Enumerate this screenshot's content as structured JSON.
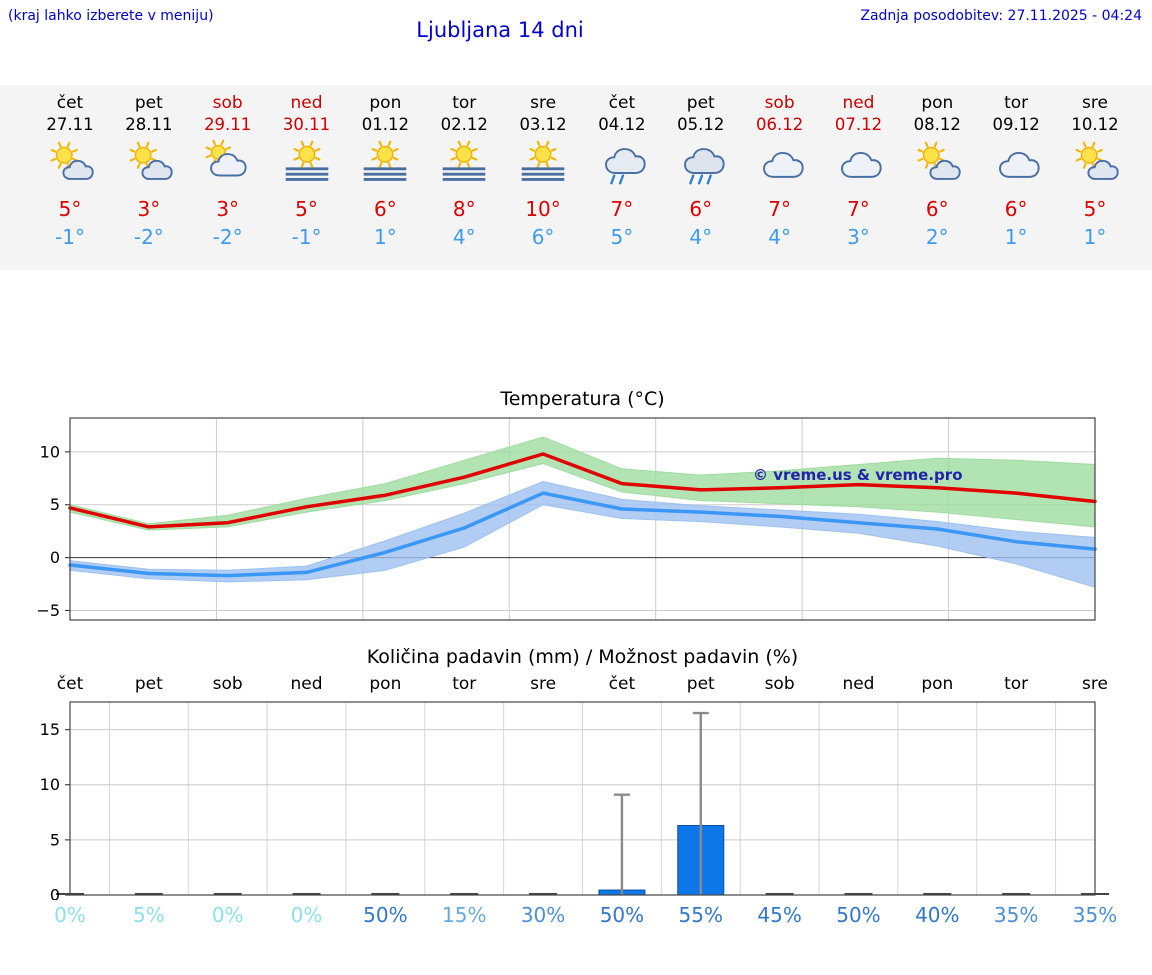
{
  "header": {
    "hint": "(kraj lahko izberete v meniju)",
    "title": "Ljubljana 14 dni",
    "updated": "Zadnja posodobitev: 27.11.2025 - 04:24"
  },
  "colors": {
    "accent_blue": "#0000cc",
    "max_temp_red": "#dd0000",
    "min_temp_blue": "#3d9bf0",
    "weekend_red": "#cc0000",
    "strip_background": "#f4f4f4"
  },
  "forecast": {
    "days": [
      {
        "name": "čet",
        "date": "27.11",
        "weekend": false,
        "icon": "partly-sunny",
        "tmax": "5°",
        "tmin": "-1°"
      },
      {
        "name": "pet",
        "date": "28.11",
        "weekend": false,
        "icon": "partly-sunny",
        "tmax": "3°",
        "tmin": "-2°"
      },
      {
        "name": "sob",
        "date": "29.11",
        "weekend": true,
        "icon": "cloud-sun",
        "tmax": "3°",
        "tmin": "-2°"
      },
      {
        "name": "ned",
        "date": "30.11",
        "weekend": true,
        "icon": "fog-sun",
        "tmax": "5°",
        "tmin": "-1°"
      },
      {
        "name": "pon",
        "date": "01.12",
        "weekend": false,
        "icon": "fog-sun",
        "tmax": "6°",
        "tmin": "1°"
      },
      {
        "name": "tor",
        "date": "02.12",
        "weekend": false,
        "icon": "fog-sun",
        "tmax": "8°",
        "tmin": "4°"
      },
      {
        "name": "sre",
        "date": "03.12",
        "weekend": false,
        "icon": "fog-sun",
        "tmax": "10°",
        "tmin": "6°"
      },
      {
        "name": "čet",
        "date": "04.12",
        "weekend": false,
        "icon": "rain",
        "tmax": "7°",
        "tmin": "5°"
      },
      {
        "name": "pet",
        "date": "05.12",
        "weekend": false,
        "icon": "rain-heavy",
        "tmax": "6°",
        "tmin": "4°"
      },
      {
        "name": "sob",
        "date": "06.12",
        "weekend": true,
        "icon": "cloudy",
        "tmax": "7°",
        "tmin": "4°"
      },
      {
        "name": "ned",
        "date": "07.12",
        "weekend": true,
        "icon": "cloudy",
        "tmax": "7°",
        "tmin": "3°"
      },
      {
        "name": "pon",
        "date": "08.12",
        "weekend": false,
        "icon": "partly-sunny",
        "tmax": "6°",
        "tmin": "2°"
      },
      {
        "name": "tor",
        "date": "09.12",
        "weekend": false,
        "icon": "cloudy",
        "tmax": "6°",
        "tmin": "1°"
      },
      {
        "name": "sre",
        "date": "10.12",
        "weekend": false,
        "icon": "partly-sunny",
        "tmax": "5°",
        "tmin": "1°"
      }
    ]
  },
  "chart_data": [
    {
      "type": "line",
      "title": "Temperatura (°C)",
      "categories": [
        "čet",
        "pet",
        "sob",
        "ned",
        "pon",
        "tor",
        "sre",
        "čet",
        "pet",
        "sob",
        "ned",
        "pon",
        "tor",
        "sre"
      ],
      "ylim": [
        -5.9,
        13.2
      ],
      "yticks": [
        -5,
        0,
        5,
        10
      ],
      "grid": true,
      "watermark": "© vreme.us & vreme.pro",
      "series": [
        {
          "name": "max-temp",
          "color": "#e10000",
          "values": [
            4.7,
            2.9,
            3.3,
            4.8,
            5.9,
            7.6,
            9.8,
            7.0,
            6.4,
            6.6,
            6.9,
            6.6,
            6.1,
            5.3
          ]
        },
        {
          "name": "min-temp",
          "color": "#3b97f5",
          "values": [
            -0.7,
            -1.5,
            -1.7,
            -1.4,
            0.5,
            2.8,
            6.1,
            4.6,
            4.3,
            3.9,
            3.3,
            2.7,
            1.5,
            0.8
          ]
        }
      ],
      "bands": [
        {
          "name": "max-temp-range",
          "color": "#9fdc9f",
          "upper": [
            5.0,
            3.2,
            4.0,
            5.6,
            7.0,
            9.2,
            11.4,
            8.4,
            7.8,
            8.2,
            8.8,
            9.4,
            9.2,
            8.8
          ],
          "lower": [
            4.3,
            2.6,
            2.9,
            4.3,
            5.4,
            7.0,
            8.9,
            6.2,
            5.4,
            5.1,
            4.8,
            4.3,
            3.6,
            2.9
          ]
        },
        {
          "name": "min-temp-range",
          "color": "#9dc1f0",
          "upper": [
            -0.3,
            -1.1,
            -1.2,
            -0.8,
            1.6,
            4.2,
            7.2,
            5.5,
            4.9,
            4.5,
            4.1,
            3.4,
            2.5,
            1.9
          ],
          "lower": [
            -1.2,
            -2.0,
            -2.3,
            -2.1,
            -1.2,
            1.0,
            5.0,
            3.7,
            3.4,
            2.9,
            2.3,
            1.1,
            -0.6,
            -2.8
          ]
        }
      ]
    },
    {
      "type": "bar",
      "title": "Količina padavin (mm) / Možnost padavin (%)",
      "categories": [
        "čet",
        "pet",
        "sob",
        "ned",
        "pon",
        "tor",
        "sre",
        "čet",
        "pet",
        "sob",
        "ned",
        "pon",
        "tor",
        "sre"
      ],
      "ylim": [
        0,
        17.5
      ],
      "yticks": [
        0,
        5,
        10,
        15
      ],
      "grid": true,
      "bar_color": "#0d76e8",
      "values": [
        0,
        0,
        0,
        0,
        0,
        0,
        0,
        0.45,
        6.3,
        0,
        0,
        0,
        0,
        0
      ],
      "whiskers": [
        0,
        0,
        0,
        0,
        0,
        0,
        0,
        9.1,
        16.5,
        0,
        0,
        0,
        0,
        0
      ],
      "probabilities": [
        0,
        5,
        0,
        0,
        50,
        15,
        30,
        50,
        55,
        45,
        50,
        40,
        35,
        35
      ]
    }
  ]
}
